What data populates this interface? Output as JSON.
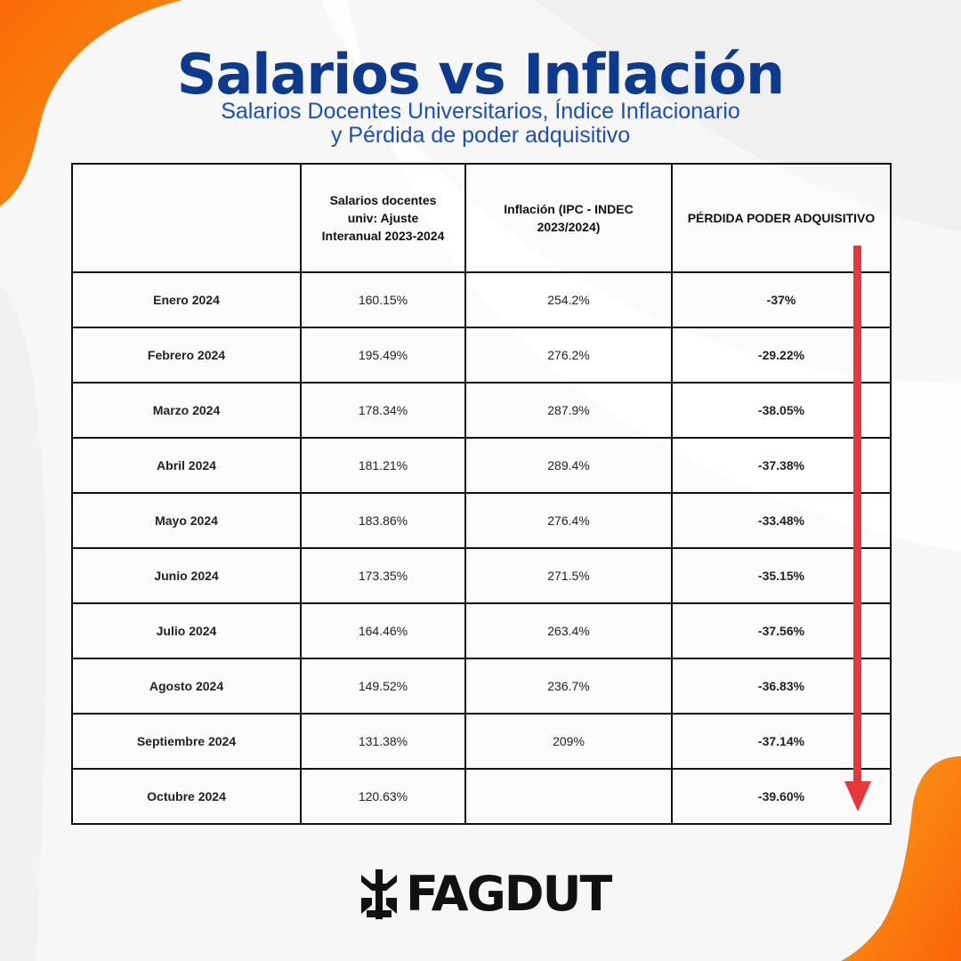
{
  "header": {
    "title": "Salarios vs Inflación",
    "subtitle_line1": "Salarios Docentes Universitarios, Índice Inflacionario",
    "subtitle_line2": "y Pérdida de poder adquisitivo"
  },
  "table": {
    "columns": [
      "",
      "Salarios docentes univ: Ajuste Interanual 2023-2024",
      "Inflación (IPC - INDEC 2023/2024)",
      "PÉRDIDA PODER ADQUISITIVO"
    ],
    "rows": [
      {
        "month": "Enero 2024",
        "salary": "160.15%",
        "inflation": "254.2%",
        "loss": "-37%"
      },
      {
        "month": "Febrero 2024",
        "salary": "195.49%",
        "inflation": "276.2%",
        "loss": "-29.22%"
      },
      {
        "month": "Marzo 2024",
        "salary": "178.34%",
        "inflation": "287.9%",
        "loss": "-38.05%"
      },
      {
        "month": "Abril 2024",
        "salary": "181.21%",
        "inflation": "289.4%",
        "loss": "-37.38%"
      },
      {
        "month": "Mayo 2024",
        "salary": "183.86%",
        "inflation": "276.4%",
        "loss": "-33.48%"
      },
      {
        "month": "Junio 2024",
        "salary": "173.35%",
        "inflation": "271.5%",
        "loss": "-35.15%"
      },
      {
        "month": "Julio 2024",
        "salary": "164.46%",
        "inflation": "263.4%",
        "loss": "-37.56%"
      },
      {
        "month": "Agosto 2024",
        "salary": "149.52%",
        "inflation": "236.7%",
        "loss": "-36.83%"
      },
      {
        "month": "Septiembre 2024",
        "salary": "131.38%",
        "inflation": "209%",
        "loss": "-37.14%"
      },
      {
        "month": "Octubre 2024",
        "salary": "120.63%",
        "inflation": "",
        "loss": "-39.60%"
      }
    ]
  },
  "footer": {
    "logo_text": "FAGDUT"
  },
  "colors": {
    "title": "#0d3a8c",
    "subtitle": "#1c4fb0",
    "loss": "#e43a3a",
    "accent_orange": "#f47a10",
    "arrow": "#e8373a"
  }
}
